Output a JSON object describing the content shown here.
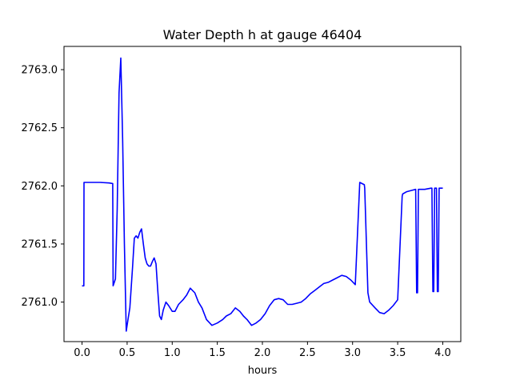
{
  "chart_data": {
    "type": "line",
    "title": "Water Depth h at gauge 46404",
    "xlabel": "hours",
    "ylabel": "",
    "xlim": [
      -0.2,
      4.2
    ],
    "ylim": [
      2760.66,
      2763.2
    ],
    "xticks": [
      0.0,
      0.5,
      1.0,
      1.5,
      2.0,
      2.5,
      3.0,
      3.5,
      4.0
    ],
    "xtick_labels": [
      "0.0",
      "0.5",
      "1.0",
      "1.5",
      "2.0",
      "2.5",
      "3.0",
      "3.5",
      "4.0"
    ],
    "yticks": [
      2761.0,
      2761.5,
      2762.0,
      2762.5,
      2763.0
    ],
    "ytick_labels": [
      "2761.0",
      "2761.5",
      "2762.0",
      "2762.5",
      "2763.0"
    ],
    "grid": false,
    "line_color": "#0000ff",
    "series": [
      {
        "x": [
          0.0,
          0.02,
          0.022,
          0.1,
          0.2,
          0.3,
          0.34,
          0.345,
          0.37,
          0.39,
          0.41,
          0.43,
          0.45,
          0.47,
          0.49,
          0.51,
          0.53,
          0.56,
          0.58,
          0.6,
          0.62,
          0.64,
          0.66,
          0.68,
          0.7,
          0.72,
          0.74,
          0.76,
          0.78,
          0.8,
          0.82,
          0.84,
          0.86,
          0.88,
          0.9,
          0.93,
          0.96,
          1.0,
          1.03,
          1.07,
          1.12,
          1.16,
          1.2,
          1.25,
          1.29,
          1.33,
          1.38,
          1.44,
          1.5,
          1.56,
          1.6,
          1.65,
          1.7,
          1.75,
          1.79,
          1.83,
          1.88,
          1.93,
          1.98,
          2.03,
          2.08,
          2.13,
          2.18,
          2.23,
          2.28,
          2.33,
          2.38,
          2.43,
          2.48,
          2.53,
          2.58,
          2.63,
          2.68,
          2.73,
          2.78,
          2.83,
          2.88,
          2.93,
          2.98,
          3.03,
          3.08,
          3.13,
          3.135,
          3.17,
          3.18,
          3.19,
          3.25,
          3.3,
          3.35,
          3.4,
          3.45,
          3.5,
          3.55,
          3.555,
          3.6,
          3.65,
          3.7,
          3.71,
          3.72,
          3.73,
          3.74,
          3.8,
          3.87,
          3.88,
          3.89,
          3.9,
          3.91,
          3.93,
          3.94,
          3.95,
          3.96,
          3.97,
          4.0
        ],
        "y": [
          2761.14,
          2761.14,
          2762.03,
          2762.03,
          2762.03,
          2762.025,
          2762.02,
          2761.14,
          2761.2,
          2761.8,
          2762.8,
          2763.1,
          2762.4,
          2761.5,
          2760.75,
          2760.85,
          2760.95,
          2761.3,
          2761.55,
          2761.57,
          2761.55,
          2761.6,
          2761.63,
          2761.5,
          2761.38,
          2761.33,
          2761.31,
          2761.31,
          2761.35,
          2761.38,
          2761.33,
          2761.1,
          2760.88,
          2760.85,
          2760.93,
          2761.0,
          2760.97,
          2760.92,
          2760.92,
          2760.98,
          2761.02,
          2761.06,
          2761.12,
          2761.08,
          2761.0,
          2760.95,
          2760.85,
          2760.8,
          2760.82,
          2760.85,
          2760.88,
          2760.9,
          2760.95,
          2760.92,
          2760.88,
          2760.85,
          2760.8,
          2760.82,
          2760.85,
          2760.9,
          2760.97,
          2761.02,
          2761.03,
          2761.02,
          2760.98,
          2760.98,
          2760.99,
          2761.0,
          2761.03,
          2761.07,
          2761.1,
          2761.13,
          2761.16,
          2761.17,
          2761.19,
          2761.21,
          2761.23,
          2761.22,
          2761.19,
          2761.15,
          2762.03,
          2762.01,
          2761.98,
          2761.08,
          2761.04,
          2761.0,
          2760.95,
          2760.91,
          2760.9,
          2760.93,
          2760.97,
          2761.02,
          2761.91,
          2761.93,
          2761.95,
          2761.96,
          2761.97,
          2761.08,
          2761.08,
          2761.97,
          2761.97,
          2761.97,
          2761.98,
          2761.98,
          2761.09,
          2761.09,
          2761.98,
          2761.98,
          2761.09,
          2761.09,
          2761.98,
          2761.98,
          2761.98
        ]
      }
    ]
  }
}
